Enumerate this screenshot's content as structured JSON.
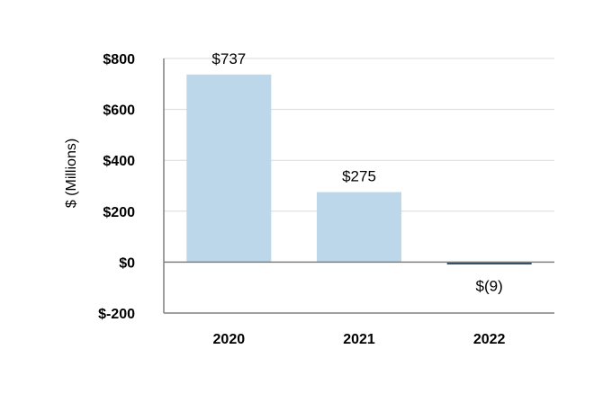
{
  "chart_data": {
    "type": "bar",
    "categories": [
      "2020",
      "2021",
      "2022"
    ],
    "values": [
      737,
      275,
      -9
    ],
    "data_labels": [
      "$737",
      "$275",
      "$(9)"
    ],
    "ylabel": "$ (Millions)",
    "xlabel": "",
    "ylim": [
      -200,
      800
    ],
    "yticks": [
      800,
      600,
      400,
      200,
      0,
      -200
    ],
    "ytick_labels": [
      "$800",
      "$600",
      "$400",
      "$200",
      "$0",
      "$-200"
    ],
    "grid": true,
    "legend": "none",
    "colors": {
      "positive_bar": "#bdd7ea",
      "negative_bar": "#2e4a62",
      "gridline": "#d9d9d9",
      "axis": "#808080",
      "zero_line": "#808080"
    }
  }
}
